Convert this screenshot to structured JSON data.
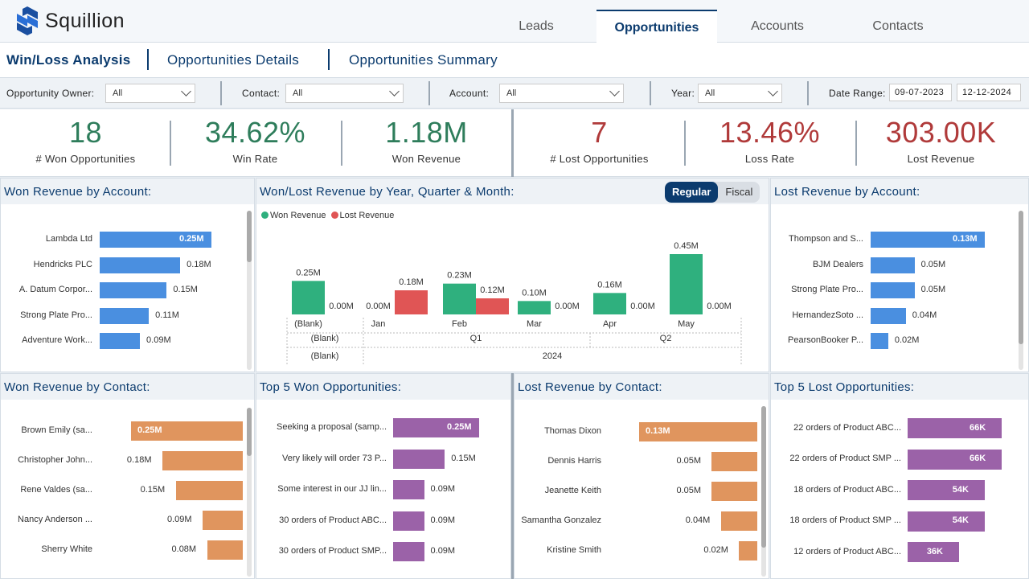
{
  "app": {
    "name": "Squillion"
  },
  "top_tabs": [
    {
      "label": "Leads"
    },
    {
      "label": "Opportunities"
    },
    {
      "label": "Accounts"
    },
    {
      "label": "Contacts"
    }
  ],
  "sub_tabs": [
    {
      "label": "Win/Loss Analysis"
    },
    {
      "label": "Opportunities Details"
    },
    {
      "label": "Opportunities Summary"
    }
  ],
  "filters": {
    "owner_label": "Opportunity Owner:",
    "owner_value": "All",
    "contact_label": "Contact:",
    "contact_value": "All",
    "account_label": "Account:",
    "account_value": "All",
    "year_label": "Year:",
    "year_value": "All",
    "date_label": "Date Range:",
    "date_from": "09-07-2023",
    "date_to": "12-12-2024"
  },
  "kpis": [
    {
      "value": "18",
      "label": "# Won Opportunities",
      "kind": "won"
    },
    {
      "value": "34.62%",
      "label": "Win Rate",
      "kind": "won"
    },
    {
      "value": "1.18M",
      "label": "Won Revenue",
      "kind": "won"
    },
    {
      "value": "7",
      "label": "# Lost Opportunities",
      "kind": "lost"
    },
    {
      "value": "13.46%",
      "label": "Loss Rate",
      "kind": "lost"
    },
    {
      "value": "303.00K",
      "label": "Lost Revenue",
      "kind": "lost"
    }
  ],
  "colors": {
    "won": "#2fb07e",
    "lost": "#e05555",
    "blue": "#4a8fe0",
    "orange": "#e0955e",
    "purple": "#9b62a8",
    "navy": "#0b3b6e"
  },
  "panels": {
    "won_account": {
      "title": "Won Revenue by Account:",
      "rows": [
        {
          "label": "Lambda Ltd",
          "value": 0.25,
          "text": "0.25M"
        },
        {
          "label": "Hendricks PLC",
          "value": 0.18,
          "text": "0.18M"
        },
        {
          "label": "A. Datum Corpor...",
          "value": 0.15,
          "text": "0.15M"
        },
        {
          "label": "Strong Plate Pro...",
          "value": 0.11,
          "text": "0.11M"
        },
        {
          "label": "Adventure Work...",
          "value": 0.09,
          "text": "0.09M"
        }
      ]
    },
    "trend": {
      "title": "Won/Lost Revenue by Year, Quarter & Month:",
      "toggle_on": "Regular",
      "toggle_off": "Fiscal",
      "legend_won": "Won Revenue",
      "legend_lost": "Lost Revenue"
    },
    "lost_account": {
      "title": "Lost Revenue by Account:",
      "rows": [
        {
          "label": "Thompson and S...",
          "value": 0.13,
          "text": "0.13M"
        },
        {
          "label": "BJM Dealers",
          "value": 0.05,
          "text": "0.05M"
        },
        {
          "label": "Strong Plate Pro...",
          "value": 0.05,
          "text": "0.05M"
        },
        {
          "label": "HernandezSoto ...",
          "value": 0.04,
          "text": "0.04M"
        },
        {
          "label": "PearsonBooker P...",
          "value": 0.02,
          "text": "0.02M"
        }
      ]
    },
    "won_contact": {
      "title": "Won Revenue by Contact:",
      "rows": [
        {
          "label": "Brown Emily (sa...",
          "value": 0.25,
          "text": "0.25M"
        },
        {
          "label": "Christopher John...",
          "value": 0.18,
          "text": "0.18M"
        },
        {
          "label": "Rene Valdes (sa...",
          "value": 0.15,
          "text": "0.15M"
        },
        {
          "label": "Nancy Anderson ...",
          "value": 0.09,
          "text": "0.09M"
        },
        {
          "label": "Sherry White",
          "value": 0.08,
          "text": "0.08M"
        }
      ]
    },
    "top_won": {
      "title": "Top 5 Won Opportunities:",
      "rows": [
        {
          "label": "Seeking a proposal (samp...",
          "value": 0.25,
          "text": "0.25M"
        },
        {
          "label": "Very likely will order 73 P...",
          "value": 0.15,
          "text": "0.15M"
        },
        {
          "label": "Some interest in our JJ lin...",
          "value": 0.09,
          "text": "0.09M"
        },
        {
          "label": "30 orders of Product ABC...",
          "value": 0.09,
          "text": "0.09M"
        },
        {
          "label": "30 orders of Product SMP...",
          "value": 0.09,
          "text": "0.09M"
        }
      ]
    },
    "lost_contact": {
      "title": "Lost Revenue by Contact:",
      "rows": [
        {
          "label": "Thomas Dixon",
          "value": 0.13,
          "text": "0.13M"
        },
        {
          "label": "Dennis Harris",
          "value": 0.05,
          "text": "0.05M"
        },
        {
          "label": "Jeanette Keith",
          "value": 0.05,
          "text": "0.05M"
        },
        {
          "label": "Samantha Gonzalez",
          "value": 0.04,
          "text": "0.04M"
        },
        {
          "label": "Kristine Smith",
          "value": 0.02,
          "text": "0.02M"
        }
      ]
    },
    "top_lost": {
      "title": "Top 5 Lost Opportunities:",
      "rows": [
        {
          "label": "22 orders of Product ABC...",
          "value": 66,
          "text": "66K"
        },
        {
          "label": "22 orders of Product SMP ...",
          "value": 66,
          "text": "66K"
        },
        {
          "label": "18 orders of Product ABC...",
          "value": 54,
          "text": "54K"
        },
        {
          "label": "18 orders of Product SMP ...",
          "value": 54,
          "text": "54K"
        },
        {
          "label": "12 orders of Product ABC...",
          "value": 36,
          "text": "36K"
        }
      ]
    }
  },
  "chart_data": [
    {
      "type": "bar",
      "title": "Won Revenue by Account:",
      "categories": [
        "Lambda Ltd",
        "Hendricks PLC",
        "A. Datum Corpor...",
        "Strong Plate Pro...",
        "Adventure Work..."
      ],
      "values": [
        0.25,
        0.18,
        0.15,
        0.11,
        0.09
      ],
      "unit": "M"
    },
    {
      "type": "bar",
      "title": "Won/Lost Revenue by Year, Quarter & Month:",
      "categories": [
        "(Blank)",
        "Jan",
        "Feb",
        "Mar",
        "Apr",
        "May"
      ],
      "quarter_labels": [
        "(Blank)",
        "Q1",
        "Q2"
      ],
      "year_labels": [
        "(Blank)",
        "2024"
      ],
      "series": [
        {
          "name": "Won Revenue",
          "values": [
            0.25,
            0.0,
            0.23,
            0.1,
            0.16,
            0.45
          ],
          "labels": [
            "0.25M",
            "0.00M",
            "0.23M",
            "0.10M",
            "0.16M",
            "0.45M"
          ]
        },
        {
          "name": "Lost Revenue",
          "values": [
            0.0,
            0.18,
            0.12,
            0.0,
            0.0,
            0.0
          ],
          "labels": [
            "0.00M",
            "0.18M",
            "0.12M",
            "0.00M",
            "0.00M",
            "0.00M"
          ]
        }
      ],
      "ylim": [
        0,
        0.5
      ]
    },
    {
      "type": "bar",
      "title": "Lost Revenue by Account:",
      "categories": [
        "Thompson and S...",
        "BJM Dealers",
        "Strong Plate Pro...",
        "HernandezSoto ...",
        "PearsonBooker P..."
      ],
      "values": [
        0.13,
        0.05,
        0.05,
        0.04,
        0.02
      ],
      "unit": "M"
    },
    {
      "type": "bar",
      "title": "Won Revenue by Contact:",
      "categories": [
        "Brown Emily (sa...",
        "Christopher John...",
        "Rene Valdes (sa...",
        "Nancy Anderson ...",
        "Sherry White"
      ],
      "values": [
        0.25,
        0.18,
        0.15,
        0.09,
        0.08
      ],
      "unit": "M"
    },
    {
      "type": "bar",
      "title": "Top 5 Won Opportunities:",
      "categories": [
        "Seeking a proposal (samp...",
        "Very likely will order 73 P...",
        "Some interest in our JJ lin...",
        "30 orders of Product ABC...",
        "30 orders of Product SMP..."
      ],
      "values": [
        0.25,
        0.15,
        0.09,
        0.09,
        0.09
      ],
      "unit": "M"
    },
    {
      "type": "bar",
      "title": "Lost Revenue by Contact:",
      "categories": [
        "Thomas Dixon",
        "Dennis Harris",
        "Jeanette Keith",
        "Samantha Gonzalez",
        "Kristine Smith"
      ],
      "values": [
        0.13,
        0.05,
        0.05,
        0.04,
        0.02
      ],
      "unit": "M"
    },
    {
      "type": "bar",
      "title": "Top 5 Lost Opportunities:",
      "categories": [
        "22 orders of Product ABC...",
        "22 orders of Product SMP ...",
        "18 orders of Product ABC...",
        "18 orders of Product SMP ...",
        "12 orders of Product ABC..."
      ],
      "values": [
        66,
        66,
        54,
        54,
        36
      ],
      "unit": "K"
    }
  ]
}
